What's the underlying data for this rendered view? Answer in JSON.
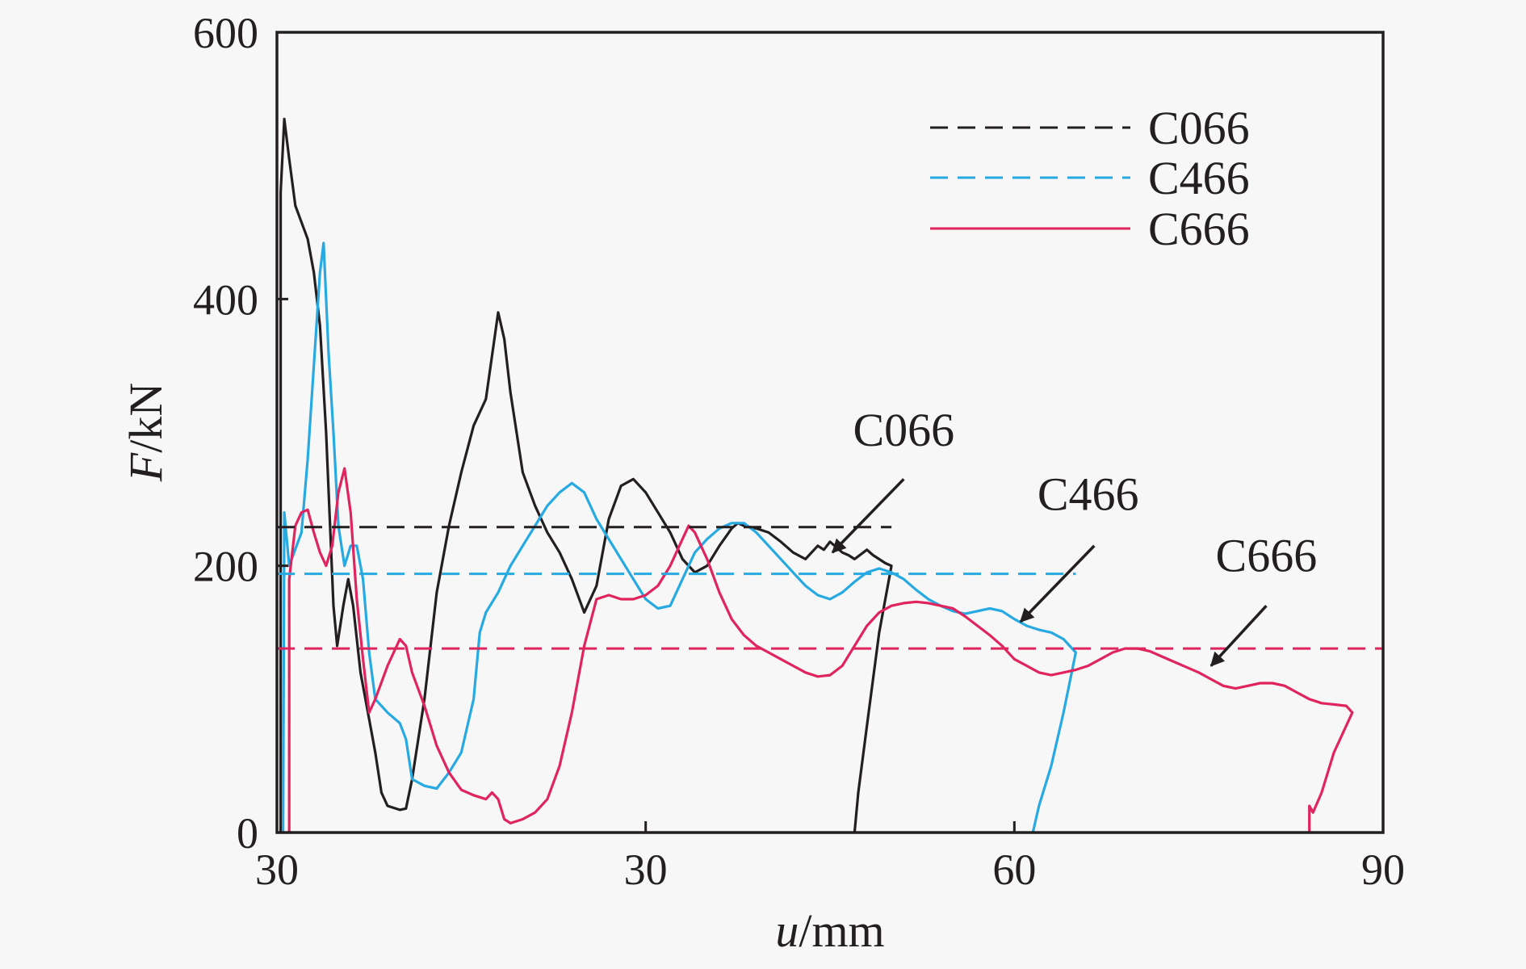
{
  "chart_data": {
    "type": "line",
    "title": "",
    "xlabel": {
      "var": "u",
      "unit": "/mm"
    },
    "ylabel": {
      "var": "F",
      "unit": "/kN"
    },
    "xlim": [
      0,
      90
    ],
    "ylim": [
      0,
      600
    ],
    "x_ticks": [
      "30",
      "60",
      "90"
    ],
    "y_ticks": [
      "0",
      "200",
      "400",
      "600"
    ],
    "grid": false,
    "legend": {
      "position": "top-right"
    },
    "series": [
      {
        "name": "C066",
        "color": "#231f20",
        "dash": true,
        "average": 229,
        "average_x_end": 50,
        "points": [
          [
            0.3,
            0
          ],
          [
            0.3,
            480
          ],
          [
            0.6,
            535
          ],
          [
            1,
            505
          ],
          [
            1.5,
            470
          ],
          [
            2.5,
            445
          ],
          [
            3,
            420
          ],
          [
            3.5,
            380
          ],
          [
            4,
            300
          ],
          [
            4.6,
            170
          ],
          [
            4.9,
            140
          ],
          [
            5.4,
            170
          ],
          [
            5.8,
            190
          ],
          [
            6.2,
            170
          ],
          [
            6.8,
            120
          ],
          [
            7.5,
            85
          ],
          [
            8,
            60
          ],
          [
            8.5,
            30
          ],
          [
            9,
            20
          ],
          [
            10,
            17
          ],
          [
            10.5,
            18
          ],
          [
            11,
            40
          ],
          [
            12,
            100
          ],
          [
            13,
            180
          ],
          [
            14,
            230
          ],
          [
            15,
            270
          ],
          [
            16,
            305
          ],
          [
            17,
            325
          ],
          [
            18,
            390
          ],
          [
            18.5,
            370
          ],
          [
            19,
            330
          ],
          [
            20,
            270
          ],
          [
            21,
            245
          ],
          [
            22,
            225
          ],
          [
            23,
            210
          ],
          [
            24,
            190
          ],
          [
            25,
            165
          ],
          [
            26,
            185
          ],
          [
            27,
            235
          ],
          [
            28,
            260
          ],
          [
            29,
            265
          ],
          [
            30,
            255
          ],
          [
            31,
            240
          ],
          [
            32,
            225
          ],
          [
            33,
            205
          ],
          [
            34,
            195
          ],
          [
            35,
            200
          ],
          [
            36,
            215
          ],
          [
            37,
            228
          ],
          [
            37.5,
            232
          ],
          [
            38,
            230
          ],
          [
            39,
            228
          ],
          [
            40,
            225
          ],
          [
            41,
            218
          ],
          [
            42,
            210
          ],
          [
            43,
            205
          ],
          [
            43.5,
            210
          ],
          [
            44,
            215
          ],
          [
            44.5,
            212
          ],
          [
            45,
            218
          ],
          [
            45.5,
            214
          ],
          [
            46,
            210
          ],
          [
            46.5,
            208
          ],
          [
            47,
            205
          ],
          [
            48,
            212
          ],
          [
            48.5,
            208
          ],
          [
            49.5,
            202
          ],
          [
            50,
            200
          ],
          [
            49,
            150
          ],
          [
            48,
            80
          ],
          [
            47.3,
            30
          ],
          [
            47,
            0
          ]
        ]
      },
      {
        "name": "C466",
        "color": "#27a9e1",
        "dash": true,
        "average": 194,
        "average_x_end": 65,
        "points": [
          [
            0.5,
            0
          ],
          [
            0.6,
            240
          ],
          [
            1,
            200
          ],
          [
            2,
            225
          ],
          [
            2.5,
            280
          ],
          [
            3,
            350
          ],
          [
            3.5,
            420
          ],
          [
            3.8,
            442
          ],
          [
            4.2,
            360
          ],
          [
            4.6,
            300
          ],
          [
            5,
            230
          ],
          [
            5.5,
            200
          ],
          [
            6,
            215
          ],
          [
            6.5,
            215
          ],
          [
            7,
            190
          ],
          [
            7.5,
            135
          ],
          [
            8,
            100
          ],
          [
            9,
            90
          ],
          [
            10,
            82
          ],
          [
            10.5,
            70
          ],
          [
            11,
            40
          ],
          [
            12,
            35
          ],
          [
            13,
            33
          ],
          [
            14,
            45
          ],
          [
            15,
            60
          ],
          [
            16,
            100
          ],
          [
            16.5,
            150
          ],
          [
            17,
            165
          ],
          [
            18,
            180
          ],
          [
            19,
            200
          ],
          [
            20,
            215
          ],
          [
            21,
            230
          ],
          [
            22,
            245
          ],
          [
            23,
            255
          ],
          [
            24,
            262
          ],
          [
            25,
            255
          ],
          [
            26,
            235
          ],
          [
            27,
            220
          ],
          [
            28,
            205
          ],
          [
            29,
            190
          ],
          [
            30,
            175
          ],
          [
            31,
            168
          ],
          [
            32,
            170
          ],
          [
            33,
            190
          ],
          [
            34,
            210
          ],
          [
            35,
            220
          ],
          [
            36,
            228
          ],
          [
            37,
            232
          ],
          [
            38,
            232
          ],
          [
            39,
            225
          ],
          [
            40,
            215
          ],
          [
            41,
            205
          ],
          [
            42,
            195
          ],
          [
            43,
            185
          ],
          [
            44,
            178
          ],
          [
            45,
            175
          ],
          [
            46,
            180
          ],
          [
            47,
            188
          ],
          [
            48,
            195
          ],
          [
            49,
            198
          ],
          [
            50,
            195
          ],
          [
            51,
            190
          ],
          [
            52,
            182
          ],
          [
            53,
            175
          ],
          [
            54,
            170
          ],
          [
            55,
            166
          ],
          [
            56,
            164
          ],
          [
            57,
            166
          ],
          [
            58,
            168
          ],
          [
            59,
            166
          ],
          [
            60,
            160
          ],
          [
            61,
            155
          ],
          [
            62,
            152
          ],
          [
            63,
            150
          ],
          [
            64,
            145
          ],
          [
            65,
            135
          ],
          [
            64,
            90
          ],
          [
            63,
            50
          ],
          [
            62,
            20
          ],
          [
            61.5,
            0
          ]
        ]
      },
      {
        "name": "C666",
        "color": "#e0245e",
        "dash": false,
        "average": 138,
        "average_x_end": 90,
        "points": [
          [
            1,
            0
          ],
          [
            1,
            190
          ],
          [
            1.5,
            230
          ],
          [
            2,
            240
          ],
          [
            2.5,
            242
          ],
          [
            3,
            225
          ],
          [
            3.5,
            210
          ],
          [
            4,
            200
          ],
          [
            4.5,
            215
          ],
          [
            5,
            255
          ],
          [
            5.5,
            273
          ],
          [
            6,
            240
          ],
          [
            6.5,
            175
          ],
          [
            7,
            130
          ],
          [
            7.5,
            90
          ],
          [
            8,
            100
          ],
          [
            9,
            125
          ],
          [
            10,
            145
          ],
          [
            10.5,
            140
          ],
          [
            11,
            120
          ],
          [
            12,
            95
          ],
          [
            13,
            65
          ],
          [
            14,
            45
          ],
          [
            15,
            32
          ],
          [
            16,
            28
          ],
          [
            17,
            25
          ],
          [
            17.5,
            30
          ],
          [
            18,
            25
          ],
          [
            18.5,
            10
          ],
          [
            19,
            7
          ],
          [
            20,
            10
          ],
          [
            21,
            15
          ],
          [
            22,
            25
          ],
          [
            23,
            50
          ],
          [
            24,
            90
          ],
          [
            25,
            140
          ],
          [
            26,
            175
          ],
          [
            27,
            178
          ],
          [
            28,
            175
          ],
          [
            29,
            175
          ],
          [
            30,
            178
          ],
          [
            31,
            185
          ],
          [
            32,
            200
          ],
          [
            33,
            220
          ],
          [
            33.5,
            230
          ],
          [
            34,
            225
          ],
          [
            35,
            205
          ],
          [
            36,
            180
          ],
          [
            37,
            160
          ],
          [
            38,
            148
          ],
          [
            39,
            140
          ],
          [
            40,
            135
          ],
          [
            41,
            130
          ],
          [
            42,
            125
          ],
          [
            43,
            120
          ],
          [
            44,
            117
          ],
          [
            45,
            118
          ],
          [
            46,
            125
          ],
          [
            47,
            140
          ],
          [
            48,
            155
          ],
          [
            49,
            165
          ],
          [
            50,
            170
          ],
          [
            51,
            172
          ],
          [
            52,
            173
          ],
          [
            53,
            172
          ],
          [
            54,
            170
          ],
          [
            55,
            168
          ],
          [
            56,
            162
          ],
          [
            57,
            155
          ],
          [
            58,
            148
          ],
          [
            59,
            140
          ],
          [
            60,
            130
          ],
          [
            61,
            125
          ],
          [
            62,
            120
          ],
          [
            63,
            118
          ],
          [
            64,
            120
          ],
          [
            65,
            122
          ],
          [
            66,
            125
          ],
          [
            67,
            130
          ],
          [
            68,
            135
          ],
          [
            69,
            138
          ],
          [
            70,
            138
          ],
          [
            71,
            136
          ],
          [
            72,
            132
          ],
          [
            73,
            128
          ],
          [
            74,
            124
          ],
          [
            75,
            120
          ],
          [
            76,
            115
          ],
          [
            77,
            110
          ],
          [
            78,
            108
          ],
          [
            79,
            110
          ],
          [
            80,
            112
          ],
          [
            81,
            112
          ],
          [
            82,
            110
          ],
          [
            83,
            105
          ],
          [
            84,
            100
          ],
          [
            85,
            97
          ],
          [
            86,
            96
          ],
          [
            87,
            95
          ],
          [
            87.5,
            90
          ],
          [
            86,
            60
          ],
          [
            85,
            30
          ],
          [
            84.3,
            15
          ],
          [
            84,
            20
          ],
          [
            84,
            0
          ]
        ]
      }
    ],
    "annotations": [
      {
        "label": "C066",
        "text_at": [
          51,
          290
        ],
        "arrow_from": [
          51,
          265
        ],
        "arrow_to": [
          45.2,
          210
        ]
      },
      {
        "label": "C466",
        "text_at": [
          66,
          242
        ],
        "arrow_from": [
          66.5,
          215
        ],
        "arrow_to": [
          60.5,
          158
        ]
      },
      {
        "label": "C666",
        "text_at": [
          80.5,
          196
        ],
        "arrow_from": [
          80.5,
          170
        ],
        "arrow_to": [
          76,
          125
        ]
      }
    ]
  }
}
